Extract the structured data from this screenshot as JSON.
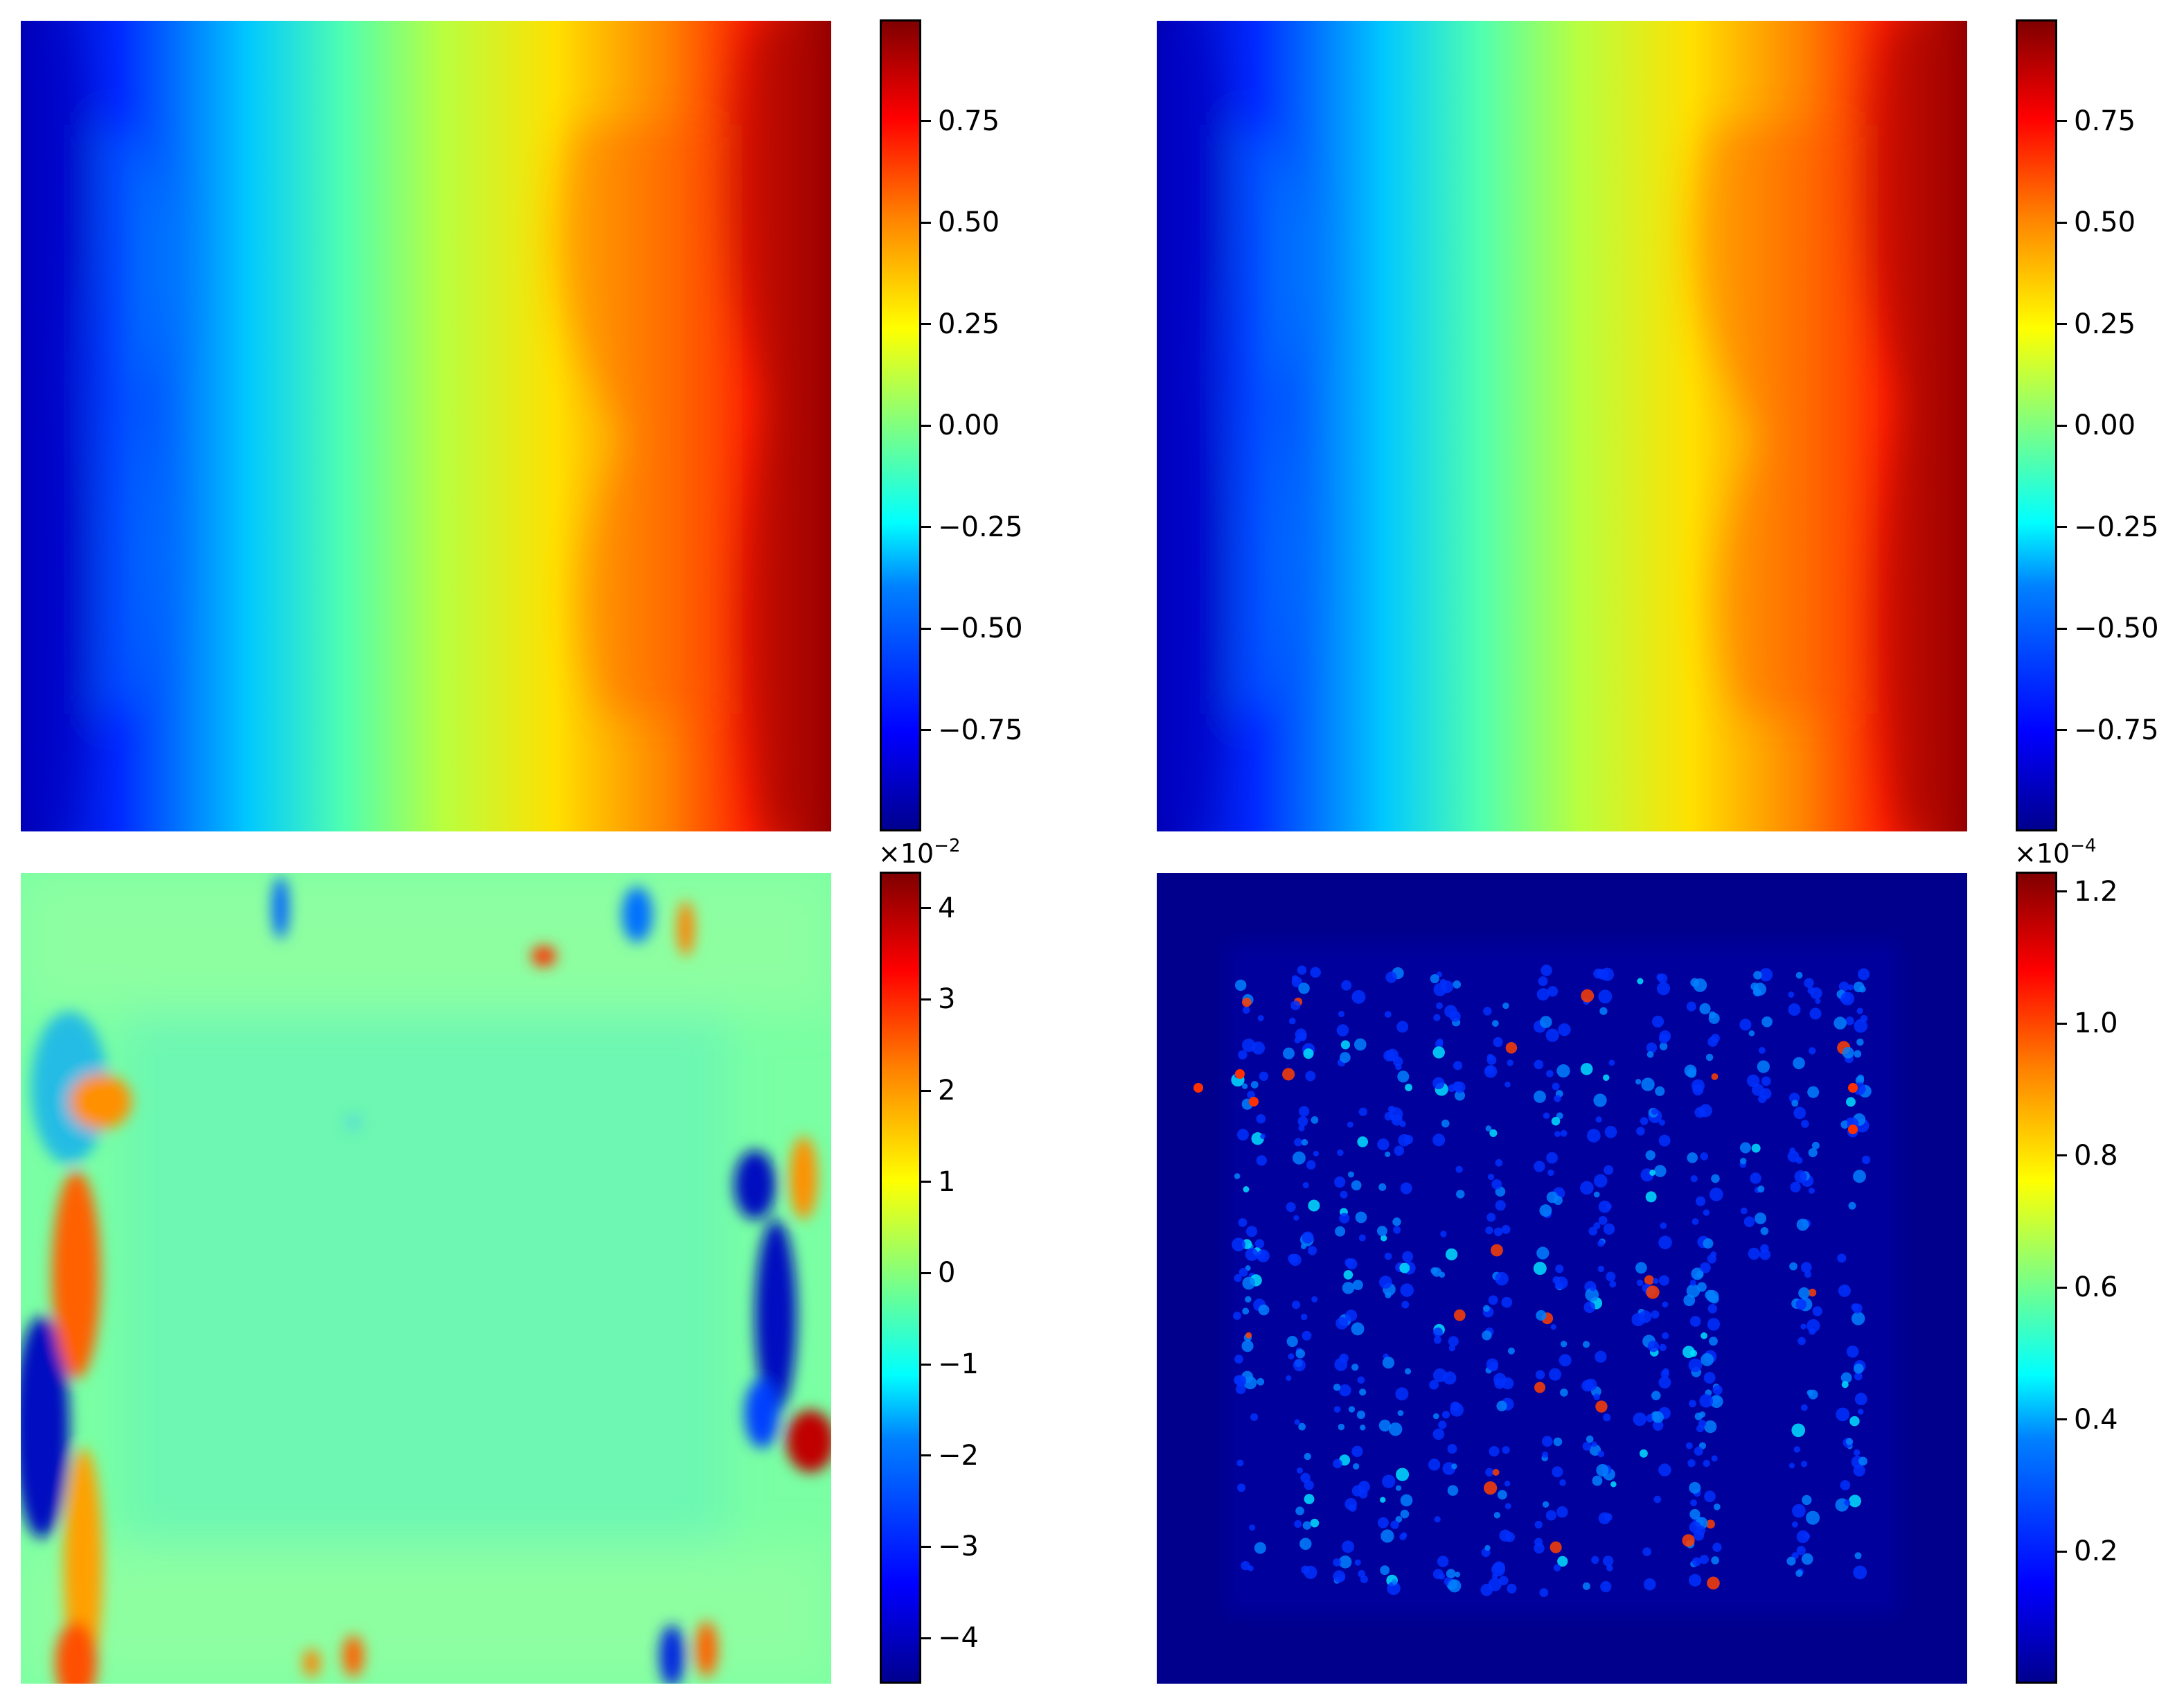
{
  "chart_data": [
    {
      "type": "heatmap",
      "colormap": "jet",
      "xticks": false,
      "yticks": false,
      "colorbar": {
        "range": [
          -1,
          1
        ],
        "ticks": [
          -0.75,
          -0.5,
          -0.25,
          0.0,
          0.25,
          0.5,
          0.75
        ],
        "ticklabels": [
          "−0.75",
          "−0.50",
          "−0.25",
          "0.00",
          "0.25",
          "0.50",
          "0.75"
        ]
      },
      "pattern": "smooth horizontal gradient from -1 (left) to +1 (right) with wavy vertical contours"
    },
    {
      "type": "heatmap",
      "colormap": "jet",
      "xticks": false,
      "yticks": false,
      "colorbar": {
        "range": [
          -1,
          1
        ],
        "ticks": [
          -0.75,
          -0.5,
          -0.25,
          0.0,
          0.25,
          0.5,
          0.75
        ],
        "ticklabels": [
          "−0.75",
          "−0.50",
          "−0.25",
          "0.00",
          "0.25",
          "0.50",
          "0.75"
        ]
      },
      "pattern": "nearly identical to first panel"
    },
    {
      "type": "heatmap",
      "colormap": "jet",
      "xticks": false,
      "yticks": false,
      "colorbar": {
        "range": [
          -4.5,
          4.4
        ],
        "ticks": [
          -4,
          -3,
          -2,
          -1,
          0,
          1,
          2,
          3,
          4
        ],
        "ticklabels": [
          "−4",
          "−3",
          "−2",
          "−1",
          "0",
          "1",
          "2",
          "3",
          "4"
        ],
        "offset_base": "×10",
        "offset_exp": "−2"
      },
      "pattern": "near-zero error field with strong positive/negative stripes along left and right edges"
    },
    {
      "type": "heatmap",
      "colormap": "jet",
      "xticks": false,
      "yticks": false,
      "colorbar": {
        "range": [
          0.0,
          1.23
        ],
        "ticks": [
          0.2,
          0.4,
          0.6,
          0.8,
          1.0,
          1.2
        ],
        "ticklabels": [
          "0.2",
          "0.4",
          "0.6",
          "0.8",
          "1.0",
          "1.2"
        ],
        "offset_base": "×10",
        "offset_exp": "−4"
      },
      "pattern": "mostly zero with speckled vertical bands of small errors inside an inner square"
    }
  ]
}
